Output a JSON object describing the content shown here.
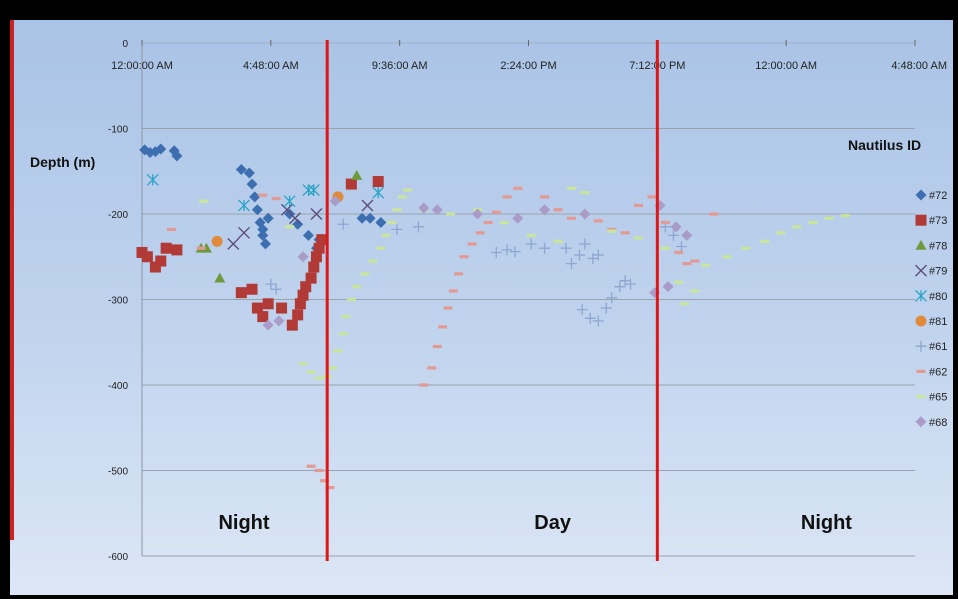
{
  "chart_data": {
    "type": "scatter",
    "ylabel": "Depth (m)",
    "legend_title": "Nautilus ID",
    "legend_position": "right",
    "x_ticks": [
      "12:00:00 AM",
      "4:48:00 AM",
      "9:36:00 AM",
      "2:24:00 PM",
      "7:12:00 PM",
      "12:00:00 AM",
      "4:48:00 AM"
    ],
    "y_ticks": [
      "0",
      "-100",
      "-200",
      "-300",
      "-400",
      "-500",
      "-600"
    ],
    "xlim": [
      0,
      28.8
    ],
    "ylim": [
      -600,
      0
    ],
    "grid": "horizontal",
    "vertical_lines_hours": [
      6.9,
      19.2
    ],
    "period_labels": [
      {
        "text": "Night",
        "hour": 3.8,
        "depth": -560
      },
      {
        "text": "Day",
        "hour": 15.3,
        "depth": -560
      },
      {
        "text": "Night",
        "hour": 25.5,
        "depth": -560
      }
    ],
    "series": [
      {
        "name": "#72",
        "color": "#3d6fb0",
        "marker": "diamond",
        "points": [
          [
            0.1,
            -125
          ],
          [
            0.3,
            -128
          ],
          [
            0.5,
            -127
          ],
          [
            0.7,
            -124
          ],
          [
            1.2,
            -126
          ],
          [
            1.3,
            -132
          ],
          [
            3.7,
            -148
          ],
          [
            4.0,
            -152
          ],
          [
            4.1,
            -165
          ],
          [
            4.2,
            -180
          ],
          [
            4.3,
            -195
          ],
          [
            4.4,
            -210
          ],
          [
            4.5,
            -225
          ],
          [
            4.6,
            -235
          ],
          [
            4.5,
            -218
          ],
          [
            4.7,
            -205
          ],
          [
            5.5,
            -200
          ],
          [
            5.8,
            -212
          ],
          [
            6.2,
            -225
          ],
          [
            6.5,
            -240
          ],
          [
            6.6,
            -230
          ],
          [
            8.2,
            -205
          ],
          [
            8.5,
            -205
          ],
          [
            8.9,
            -210
          ]
        ]
      },
      {
        "name": "#73",
        "color": "#b23a36",
        "marker": "square",
        "points": [
          [
            0.0,
            -245
          ],
          [
            0.2,
            -250
          ],
          [
            0.5,
            -262
          ],
          [
            0.7,
            -255
          ],
          [
            0.9,
            -240
          ],
          [
            1.3,
            -242
          ],
          [
            3.7,
            -292
          ],
          [
            4.1,
            -288
          ],
          [
            4.3,
            -310
          ],
          [
            4.5,
            -320
          ],
          [
            4.7,
            -305
          ],
          [
            5.2,
            -310
          ],
          [
            5.6,
            -330
          ],
          [
            5.8,
            -318
          ],
          [
            5.9,
            -305
          ],
          [
            6.0,
            -295
          ],
          [
            6.1,
            -285
          ],
          [
            6.3,
            -275
          ],
          [
            6.4,
            -262
          ],
          [
            6.5,
            -250
          ],
          [
            6.6,
            -240
          ],
          [
            6.7,
            -230
          ],
          [
            7.8,
            -165
          ],
          [
            8.8,
            -162
          ]
        ]
      },
      {
        "name": "#78",
        "color": "#6e9a3b",
        "marker": "triangle",
        "points": [
          [
            2.2,
            -240
          ],
          [
            2.4,
            -240
          ],
          [
            2.9,
            -275
          ],
          [
            8.0,
            -155
          ]
        ]
      },
      {
        "name": "#79",
        "color": "#5c4d7d",
        "marker": "x",
        "points": [
          [
            3.4,
            -235
          ],
          [
            3.8,
            -222
          ],
          [
            5.4,
            -195
          ],
          [
            5.7,
            -205
          ],
          [
            6.5,
            -200
          ],
          [
            8.4,
            -190
          ]
        ]
      },
      {
        "name": "#80",
        "color": "#2aa4c6",
        "marker": "asterisk",
        "points": [
          [
            0.4,
            -160
          ],
          [
            3.8,
            -190
          ],
          [
            5.5,
            -185
          ],
          [
            6.2,
            -172
          ],
          [
            6.4,
            -172
          ],
          [
            8.8,
            -175
          ]
        ]
      },
      {
        "name": "#81",
        "color": "#e08a3c",
        "marker": "circle",
        "points": [
          [
            2.8,
            -232
          ],
          [
            7.3,
            -180
          ]
        ]
      },
      {
        "name": "#61",
        "color": "#8ea7d0",
        "marker": "plus",
        "points": [
          [
            4.8,
            -282
          ],
          [
            5.0,
            -288
          ],
          [
            7.5,
            -212
          ],
          [
            9.5,
            -218
          ],
          [
            10.3,
            -215
          ],
          [
            13.2,
            -245
          ],
          [
            13.6,
            -242
          ],
          [
            13.9,
            -244
          ],
          [
            14.5,
            -235
          ],
          [
            15.0,
            -240
          ],
          [
            15.8,
            -240
          ],
          [
            16.0,
            -258
          ],
          [
            16.3,
            -248
          ],
          [
            16.5,
            -235
          ],
          [
            16.8,
            -252
          ],
          [
            17.0,
            -248
          ],
          [
            16.4,
            -312
          ],
          [
            16.7,
            -322
          ],
          [
            17.0,
            -325
          ],
          [
            17.3,
            -310
          ],
          [
            17.5,
            -298
          ],
          [
            17.8,
            -285
          ],
          [
            18.0,
            -278
          ],
          [
            18.2,
            -282
          ],
          [
            19.5,
            -215
          ],
          [
            19.8,
            -225
          ],
          [
            20.1,
            -238
          ]
        ]
      },
      {
        "name": "#62",
        "color": "#e49a94",
        "marker": "dash",
        "points": [
          [
            1.1,
            -218
          ],
          [
            2.2,
            -240
          ],
          [
            4.5,
            -178
          ],
          [
            5.0,
            -182
          ],
          [
            6.3,
            -495
          ],
          [
            6.6,
            -500
          ],
          [
            6.8,
            -512
          ],
          [
            7.0,
            -520
          ],
          [
            10.5,
            -400
          ],
          [
            10.8,
            -380
          ],
          [
            11.0,
            -355
          ],
          [
            11.2,
            -332
          ],
          [
            11.4,
            -310
          ],
          [
            11.6,
            -290
          ],
          [
            11.8,
            -270
          ],
          [
            12.0,
            -250
          ],
          [
            12.3,
            -235
          ],
          [
            12.6,
            -222
          ],
          [
            12.9,
            -210
          ],
          [
            13.2,
            -198
          ],
          [
            13.6,
            -180
          ],
          [
            14.0,
            -170
          ],
          [
            15.0,
            -180
          ],
          [
            15.5,
            -195
          ],
          [
            16.0,
            -205
          ],
          [
            16.5,
            -200
          ],
          [
            17.0,
            -208
          ],
          [
            17.5,
            -218
          ],
          [
            18.0,
            -222
          ],
          [
            18.5,
            -190
          ],
          [
            19.0,
            -180
          ],
          [
            19.5,
            -210
          ],
          [
            20.0,
            -245
          ],
          [
            20.3,
            -258
          ],
          [
            20.6,
            -255
          ],
          [
            21.3,
            -200
          ]
        ]
      },
      {
        "name": "#65",
        "color": "#c9e59b",
        "marker": "dash",
        "points": [
          [
            2.3,
            -185
          ],
          [
            5.5,
            -215
          ],
          [
            6.0,
            -375
          ],
          [
            6.3,
            -385
          ],
          [
            6.6,
            -392
          ],
          [
            6.9,
            -390
          ],
          [
            7.1,
            -380
          ],
          [
            7.3,
            -360
          ],
          [
            7.5,
            -340
          ],
          [
            7.6,
            -320
          ],
          [
            7.8,
            -300
          ],
          [
            8.0,
            -285
          ],
          [
            8.3,
            -270
          ],
          [
            8.6,
            -255
          ],
          [
            8.9,
            -240
          ],
          [
            9.1,
            -225
          ],
          [
            9.3,
            -210
          ],
          [
            9.5,
            -195
          ],
          [
            9.7,
            -180
          ],
          [
            9.9,
            -172
          ],
          [
            10.5,
            -195
          ],
          [
            11.5,
            -200
          ],
          [
            12.5,
            -195
          ],
          [
            13.5,
            -210
          ],
          [
            14.5,
            -225
          ],
          [
            15.5,
            -232
          ],
          [
            16.0,
            -170
          ],
          [
            16.5,
            -175
          ],
          [
            17.5,
            -220
          ],
          [
            18.5,
            -228
          ],
          [
            19.5,
            -240
          ],
          [
            20.0,
            -280
          ],
          [
            20.2,
            -305
          ],
          [
            20.6,
            -290
          ],
          [
            21.0,
            -260
          ],
          [
            21.8,
            -250
          ],
          [
            22.5,
            -240
          ],
          [
            23.2,
            -232
          ],
          [
            23.8,
            -222
          ],
          [
            24.4,
            -215
          ],
          [
            25.0,
            -210
          ],
          [
            25.6,
            -205
          ],
          [
            26.2,
            -202
          ]
        ]
      },
      {
        "name": "#68",
        "color": "#a99cc8",
        "marker": "diamond",
        "points": [
          [
            4.7,
            -330
          ],
          [
            5.1,
            -325
          ],
          [
            6.0,
            -250
          ],
          [
            7.2,
            -185
          ],
          [
            10.5,
            -193
          ],
          [
            11.0,
            -195
          ],
          [
            12.5,
            -200
          ],
          [
            14.0,
            -205
          ],
          [
            15.0,
            -195
          ],
          [
            16.5,
            -200
          ],
          [
            19.3,
            -190
          ],
          [
            19.1,
            -292
          ],
          [
            19.6,
            -285
          ],
          [
            19.9,
            -215
          ],
          [
            20.3,
            -225
          ]
        ]
      }
    ]
  }
}
